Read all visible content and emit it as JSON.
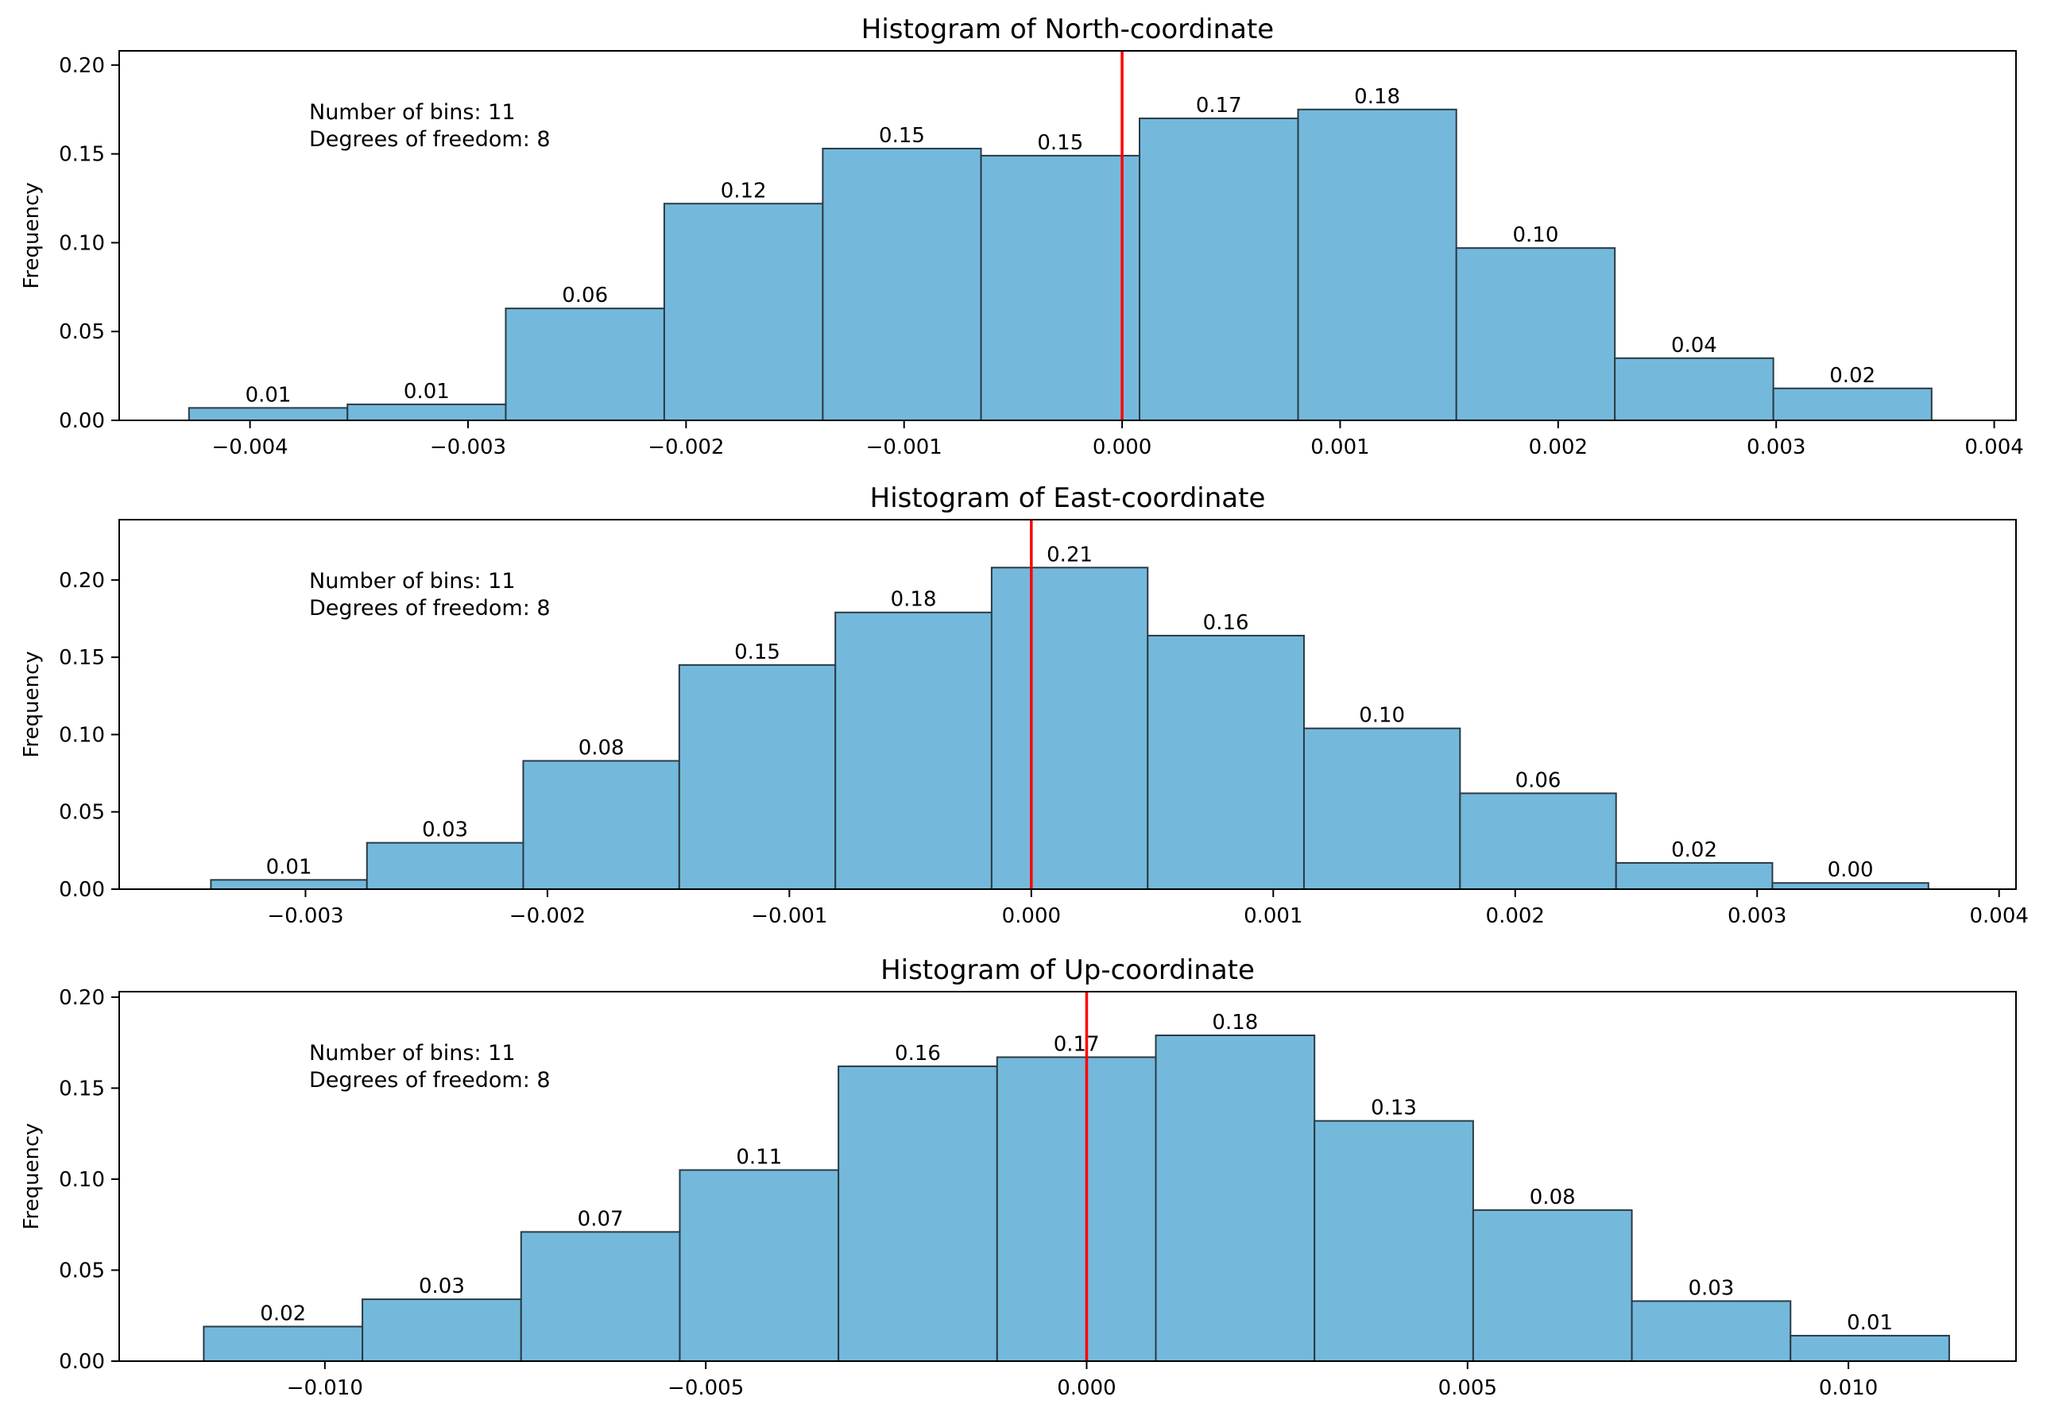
{
  "chart_data": [
    {
      "type": "bar",
      "title": "Histogram of North-coordinate",
      "xlabel": "",
      "ylabel": "Frequency",
      "annotation_lines": [
        "Number of bins: 11",
        "Degrees of freedom: 8"
      ],
      "bar_color": "#74b9dc",
      "edge_color": "#2b3a44",
      "vline_color": "#ff0000",
      "vline_x": 0.0,
      "xlim": [
        -0.0046,
        0.0041
      ],
      "ylim": [
        0,
        0.208
      ],
      "xticks": [
        -0.004,
        -0.003,
        -0.002,
        -0.001,
        0.0,
        0.001,
        0.002,
        0.003,
        0.004
      ],
      "xtick_labels": [
        "−0.004",
        "−0.003",
        "−0.002",
        "−0.001",
        "0.000",
        "0.001",
        "0.002",
        "0.003",
        "0.004"
      ],
      "yticks": [
        0,
        0.05,
        0.1,
        0.15,
        0.2
      ],
      "ytick_labels": [
        "0.00",
        "0.05",
        "0.10",
        "0.15",
        "0.20"
      ],
      "bin_edges": [
        -0.00428,
        -0.003553,
        -0.002827,
        -0.0021,
        -0.001373,
        -0.000647,
        8e-05,
        0.000807,
        0.001533,
        0.00226,
        0.002987,
        0.003713
      ],
      "values": [
        0.007,
        0.009,
        0.063,
        0.122,
        0.153,
        0.149,
        0.17,
        0.175,
        0.097,
        0.035,
        0.018
      ],
      "value_labels": [
        "0.01",
        "0.01",
        "0.06",
        "0.12",
        "0.15",
        "0.15",
        "0.17",
        "0.18",
        "0.10",
        "0.04",
        "0.02"
      ]
    },
    {
      "type": "bar",
      "title": "Histogram of East-coordinate",
      "xlabel": "",
      "ylabel": "Frequency",
      "annotation_lines": [
        "Number of bins: 11",
        "Degrees of freedom: 8"
      ],
      "bar_color": "#74b9dc",
      "edge_color": "#2b3a44",
      "vline_color": "#ff0000",
      "vline_x": 0.0,
      "xlim": [
        -0.00377,
        0.00407
      ],
      "ylim": [
        0,
        0.239
      ],
      "xticks": [
        -0.003,
        -0.002,
        -0.001,
        0.0,
        0.001,
        0.002,
        0.003,
        0.004
      ],
      "xtick_labels": [
        "−0.003",
        "−0.002",
        "−0.001",
        "0.000",
        "0.001",
        "0.002",
        "0.003",
        "0.004"
      ],
      "yticks": [
        0,
        0.05,
        0.1,
        0.15,
        0.2
      ],
      "ytick_labels": [
        "0.00",
        "0.05",
        "0.10",
        "0.15",
        "0.20"
      ],
      "bin_edges": [
        -0.003391,
        -0.002746,
        -0.0021,
        -0.001455,
        -0.00081,
        -0.000164,
        0.000481,
        0.001127,
        0.001772,
        0.002417,
        0.003063,
        0.003708
      ],
      "values": [
        0.006,
        0.03,
        0.083,
        0.145,
        0.179,
        0.208,
        0.164,
        0.104,
        0.062,
        0.017,
        0.004
      ],
      "value_labels": [
        "0.01",
        "0.03",
        "0.08",
        "0.15",
        "0.18",
        "0.21",
        "0.16",
        "0.10",
        "0.06",
        "0.02",
        "0.00"
      ]
    },
    {
      "type": "bar",
      "title": "Histogram of Up-coordinate",
      "xlabel": "",
      "ylabel": "Frequency",
      "annotation_lines": [
        "Number of bins: 11",
        "Degrees of freedom: 8"
      ],
      "bar_color": "#74b9dc",
      "edge_color": "#2b3a44",
      "vline_color": "#ff0000",
      "vline_x": 0.0,
      "xlim": [
        -0.0127,
        0.0122
      ],
      "ylim": [
        0,
        0.203
      ],
      "xticks": [
        -0.01,
        -0.005,
        0.0,
        0.005,
        0.01
      ],
      "xtick_labels": [
        "−0.010",
        "−0.005",
        "0.000",
        "0.005",
        "0.010"
      ],
      "yticks": [
        0,
        0.05,
        0.1,
        0.15,
        0.2
      ],
      "ytick_labels": [
        "0.00",
        "0.05",
        "0.10",
        "0.15",
        "0.20"
      ],
      "bin_edges": [
        -0.01159,
        -0.009507,
        -0.007424,
        -0.005341,
        -0.003258,
        -0.001175,
        0.000908,
        0.002991,
        0.005074,
        0.007157,
        0.00924,
        0.011323
      ],
      "values": [
        0.019,
        0.034,
        0.071,
        0.105,
        0.162,
        0.167,
        0.179,
        0.132,
        0.083,
        0.033,
        0.014
      ],
      "value_labels": [
        "0.02",
        "0.03",
        "0.07",
        "0.11",
        "0.16",
        "0.17",
        "0.18",
        "0.13",
        "0.08",
        "0.03",
        "0.01"
      ]
    }
  ]
}
